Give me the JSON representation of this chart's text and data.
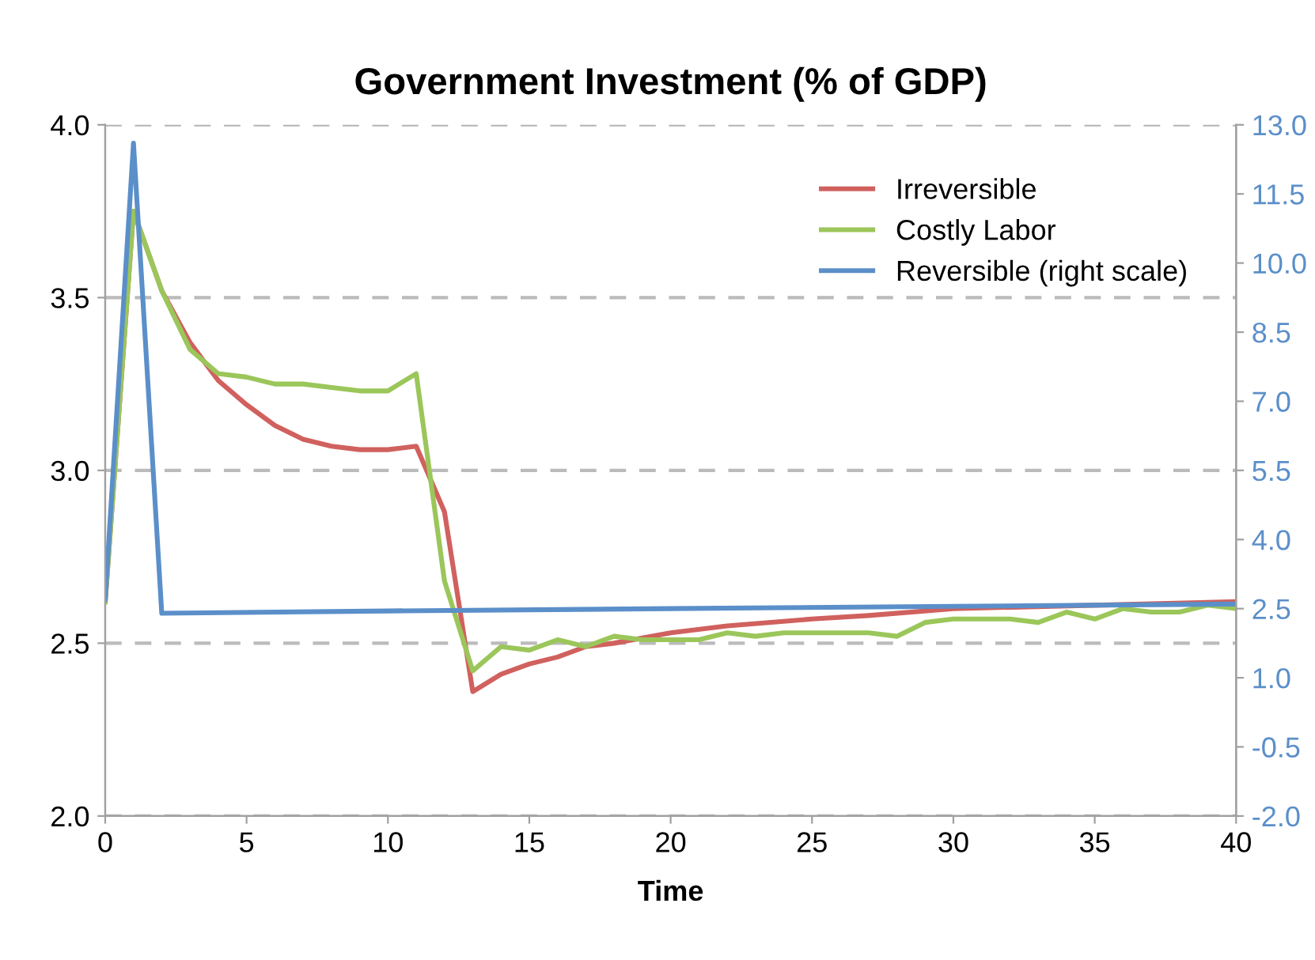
{
  "chart_data": {
    "type": "line",
    "title": "Government Investment (% of GDP)",
    "xlabel": "Time",
    "xlim": [
      0,
      40
    ],
    "xticks": [
      0,
      5,
      10,
      15,
      20,
      25,
      30,
      35,
      40
    ],
    "ylim": [
      2.0,
      4.0
    ],
    "yticks": [
      {
        "value": 2.0,
        "label": "2.0"
      },
      {
        "value": 2.5,
        "label": "2.5"
      },
      {
        "value": 3.0,
        "label": "3.0"
      },
      {
        "value": 3.5,
        "label": "3.5"
      },
      {
        "value": 4.0,
        "label": "4.0"
      }
    ],
    "y2lim": [
      -2.0,
      13.0
    ],
    "y2ticks": [
      {
        "value": -2.0,
        "label": "-2.0"
      },
      {
        "value": -0.5,
        "label": "-0.5"
      },
      {
        "value": 1.0,
        "label": "1.0"
      },
      {
        "value": 2.5,
        "label": "2.5"
      },
      {
        "value": 4.0,
        "label": "4.0"
      },
      {
        "value": 5.5,
        "label": "5.5"
      },
      {
        "value": 7.0,
        "label": "7.0"
      },
      {
        "value": 8.5,
        "label": "8.5"
      },
      {
        "value": 10.0,
        "label": "10.0"
      },
      {
        "value": 11.5,
        "label": "11.5"
      },
      {
        "value": 13.0,
        "label": "13.0"
      }
    ],
    "grid": "y",
    "legend": "top right",
    "marker": "none",
    "line_style": "solid",
    "series": [
      {
        "name": "Irreversible",
        "color": "#d0615e",
        "x": [
          0,
          1,
          2,
          3,
          4,
          5,
          6,
          7,
          8,
          9,
          10,
          11,
          12,
          13,
          14,
          15,
          16,
          17,
          18,
          20,
          22,
          25,
          27,
          30,
          40
        ],
        "values": [
          2.62,
          3.75,
          3.52,
          3.37,
          3.26,
          3.19,
          3.13,
          3.09,
          3.07,
          3.06,
          3.06,
          3.07,
          2.88,
          2.36,
          2.41,
          2.44,
          2.46,
          2.49,
          2.5,
          2.53,
          2.55,
          2.57,
          2.58,
          2.6,
          2.62
        ]
      },
      {
        "name": "Costly Labor",
        "color": "#9bc65a",
        "x": [
          0,
          1,
          2,
          3,
          4,
          5,
          6,
          7,
          8,
          9,
          10,
          11,
          12,
          13,
          14,
          15,
          16,
          17,
          18,
          19,
          20,
          21,
          22,
          23,
          24,
          25,
          26,
          27,
          28,
          29,
          30,
          31,
          32,
          33,
          34,
          35,
          36,
          37,
          38,
          39,
          40
        ],
        "values": [
          2.62,
          3.75,
          3.52,
          3.35,
          3.28,
          3.27,
          3.25,
          3.25,
          3.24,
          3.23,
          3.23,
          3.28,
          2.68,
          2.42,
          2.49,
          2.48,
          2.51,
          2.49,
          2.52,
          2.51,
          2.51,
          2.51,
          2.53,
          2.52,
          2.53,
          2.53,
          2.53,
          2.53,
          2.52,
          2.56,
          2.57,
          2.57,
          2.57,
          2.56,
          2.59,
          2.57,
          2.6,
          2.59,
          2.59,
          2.61,
          2.6
        ]
      },
      {
        "name": "Reversible (right scale)",
        "color": "#5b8fc9",
        "axis": "y2",
        "x": [
          0,
          1,
          2,
          10,
          20,
          30,
          40
        ],
        "values": [
          2.7,
          12.6,
          2.4,
          2.45,
          2.5,
          2.55,
          2.6
        ]
      }
    ]
  }
}
